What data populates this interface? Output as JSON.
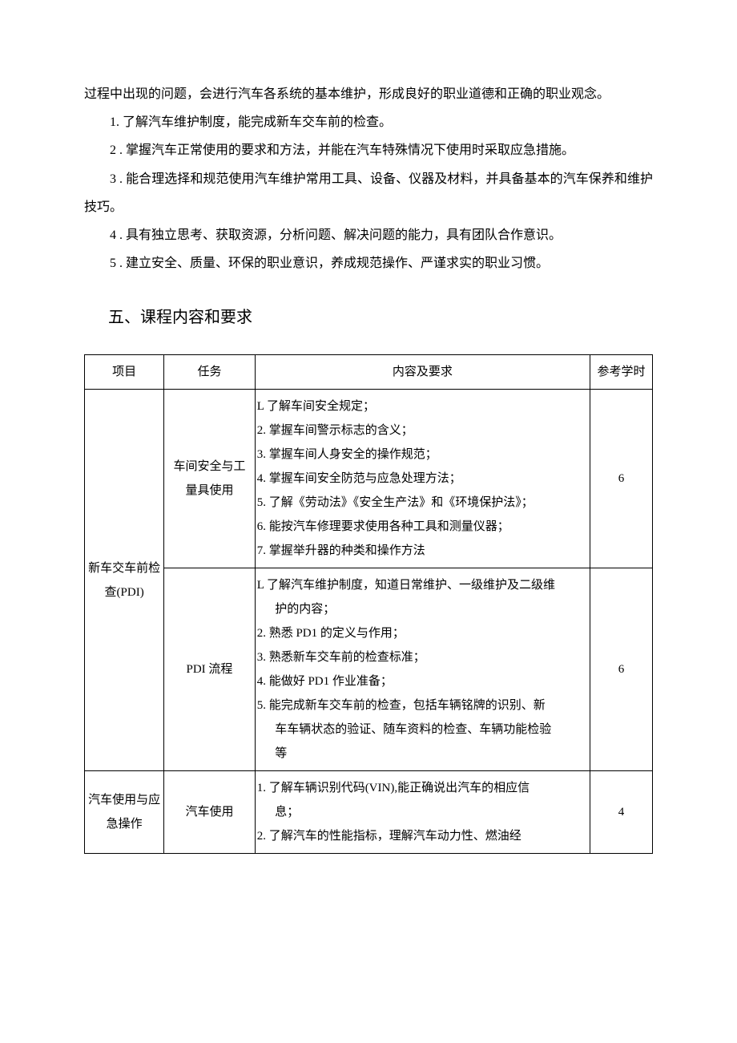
{
  "intro": "过程中出现的问题，会进行汽车各系统的基本维护，形成良好的职业道德和正确的职业观念。",
  "objectives": [
    "1. 了解汽车维护制度，能完成新车交车前的检查。",
    "2 . 掌握汽车正常使用的要求和方法，并能在汽车特殊情况下使用时采取应急措施。",
    "3 . 能合理选择和规范使用汽车维护常用工具、设备、仪器及材料，并具备基本的汽车保养和维护技巧。",
    "4 . 具有独立思考、获取资源，分析问题、解决问题的能力，具有团队合作意识。",
    "5 . 建立安全、质量、环保的职业意识，养成规范操作、严谨求实的职业习惯。"
  ],
  "section_heading": "五、课程内容和要求",
  "table": {
    "headers": {
      "project": "项目",
      "task": "任务",
      "content": "内容及要求",
      "hours": "参考学时"
    },
    "rows": [
      {
        "project": "新车交车前检查(PDI)",
        "project_rowspan": 2,
        "task": "车间安全与工量具使用",
        "content_lines": [
          {
            "text": "L 了解车间安全规定；",
            "indent": false
          },
          {
            "text": "2. 掌握车间警示标志的含义；",
            "indent": false
          },
          {
            "text": "3. 掌握车间人身安全的操作规范；",
            "indent": false
          },
          {
            "text": "4. 掌握车间安全防范与应急处理方法；",
            "indent": false
          },
          {
            "text": "5. 了解《劳动法》《安全生产法》和《环境保护法》；",
            "indent": false
          },
          {
            "text": "6. 能按汽车修理要求使用各种工具和测量仪器；",
            "indent": false
          },
          {
            "text": "7. 掌握举升器的种类和操作方法",
            "indent": false
          }
        ],
        "hours": "6"
      },
      {
        "project": "",
        "project_rowspan": 0,
        "task": "PDI 流程",
        "content_lines": [
          {
            "text": "L 了解汽车维护制度，知道日常维护、一级维护及二级维",
            "indent": false
          },
          {
            "text": "护的内容；",
            "indent": true
          },
          {
            "text": "2. 熟悉 PD1 的定义与作用；",
            "indent": false
          },
          {
            "text": "3. 熟悉新车交车前的检查标准；",
            "indent": false
          },
          {
            "text": "4. 能做好 PD1 作业准备；",
            "indent": false
          },
          {
            "text": "5. 能完成新车交车前的检查，包括车辆铭牌的识别、新",
            "indent": false
          },
          {
            "text": "车车辆状态的验证、随车资料的检查、车辆功能检验",
            "indent": true
          },
          {
            "text": "等",
            "indent": true
          }
        ],
        "hours": "6"
      },
      {
        "project": "汽车使用与应急操作",
        "project_rowspan": 1,
        "task": "汽车使用",
        "content_lines": [
          {
            "text": "1. 了解车辆识别代码(VIN),能正确说出汽车的相应信",
            "indent": false
          },
          {
            "text": "息；",
            "indent": true
          },
          {
            "text": "2. 了解汽车的性能指标，理解汽车动力性、燃油经",
            "indent": false
          }
        ],
        "hours": "4"
      }
    ]
  }
}
